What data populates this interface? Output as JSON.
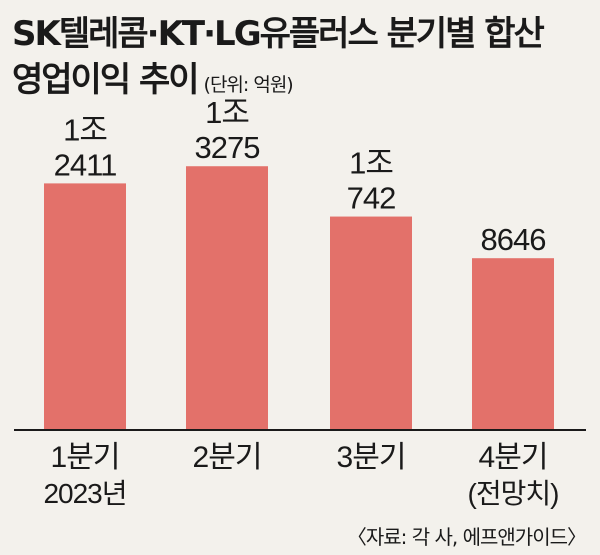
{
  "title": {
    "line1": "SK텔레콤·KT·LG유플러스 분기별 합산",
    "line2": "영업이익 추이",
    "unit": "(단위: 억원)"
  },
  "source": "〈자료: 각 사, 에프앤가이드〉",
  "colors": {
    "bar": "#e3716a",
    "axis": "#1a1a1a",
    "background": "#f3f1ec"
  },
  "chart_data": {
    "type": "bar",
    "categories": [
      "1분기",
      "2분기",
      "3분기",
      "4분기"
    ],
    "category_sublabels": [
      "2023년",
      "",
      "",
      "(전망치)"
    ],
    "values": [
      12411,
      13275,
      10742,
      8646
    ],
    "value_labels": [
      [
        "1조",
        "2411"
      ],
      [
        "1조",
        "3275"
      ],
      [
        "1조",
        "742"
      ],
      [
        "8646"
      ]
    ],
    "unit": "억원",
    "ylim": [
      0,
      16500
    ],
    "grid": false,
    "legend": "none"
  }
}
